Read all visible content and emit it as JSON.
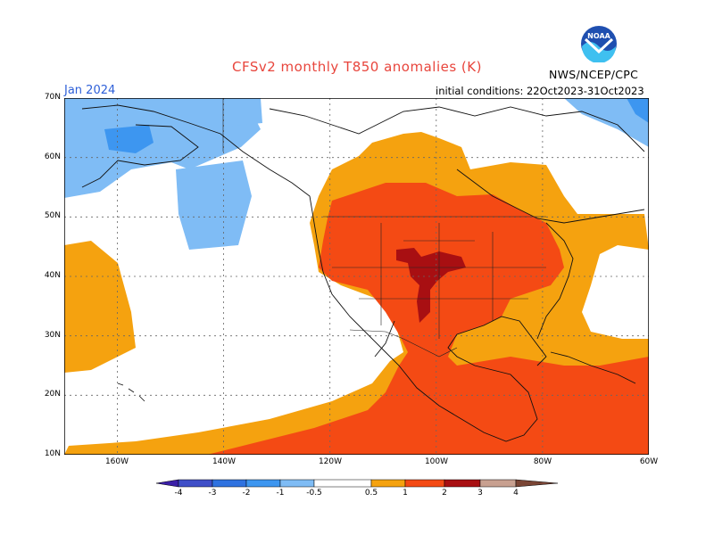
{
  "header": {
    "title": "CFSv2 monthly T850 anomalies (K)",
    "month": "Jan 2024",
    "initial_conditions": "initial conditions: 22Oct2023-31Oct2023",
    "agency": "NWS/NCEP/CPC",
    "logo_text": "NOAA"
  },
  "axes": {
    "lat_ticks": [
      "70N",
      "60N",
      "50N",
      "40N",
      "30N",
      "20N",
      "10N"
    ],
    "lon_ticks": [
      "160W",
      "140W",
      "120W",
      "100W",
      "80W",
      "60W"
    ]
  },
  "legend": {
    "labels": [
      "-4",
      "-3",
      "-2",
      "-1",
      "-0.5",
      "0.5",
      "1",
      "2",
      "3",
      "4"
    ],
    "colors": [
      "#3b1fa8",
      "#3f4fc8",
      "#2f72e0",
      "#3d96f0",
      "#7fbcf5",
      "#ffffff",
      "#f5a20f",
      "#f44a14",
      "#a80f12",
      "#c8a090",
      "#7a4535"
    ]
  },
  "map": {
    "colors": {
      "cold_light": "#7fbcf5",
      "cold_mid": "#3d96f0",
      "warm_light": "#f5a20f",
      "warm_mid": "#f44a14",
      "warm_high": "#a80f12"
    }
  }
}
